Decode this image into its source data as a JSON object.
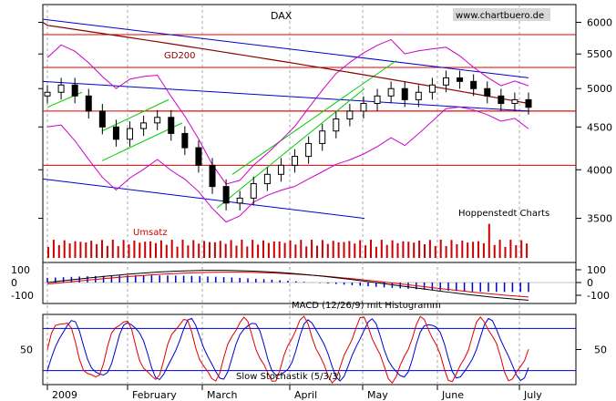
{
  "chart_data": {
    "type": "candlestick",
    "title": "DAX",
    "watermark": "www.chartbuero.de",
    "source_label": "Hoppenstedt Charts",
    "x_axis_labels": [
      "2009",
      "February",
      "March",
      "April",
      "May",
      "June",
      "July"
    ],
    "price_panel": {
      "y_ticks": [
        6000,
        5500,
        5000,
        4500,
        4000,
        3500
      ],
      "ylim": [
        3100,
        6300
      ],
      "scale": "log",
      "ma_label": "GD200",
      "volume_label": "Umsatz",
      "horizontal_levels": [
        5800,
        5300,
        4700,
        4050
      ],
      "close_by_week": [
        4950,
        5050,
        4900,
        4700,
        4500,
        4350,
        4480,
        4550,
        4620,
        4420,
        4250,
        4050,
        3820,
        3650,
        3700,
        3850,
        3950,
        4050,
        4150,
        4300,
        4450,
        4600,
        4700,
        4800,
        4900,
        5000,
        4850,
        4950,
        5050,
        5150,
        5100,
        5000,
        4900,
        4800,
        4850,
        4750
      ]
    },
    "macd_panel": {
      "label": "MACD (12/26/9) mit Histogramm",
      "y_ticks": [
        100,
        0,
        -100
      ]
    },
    "stochastic_panel": {
      "label": "Slow Stochastik (5/3/3)",
      "y_ticks": [
        50
      ],
      "levels": [
        80,
        20
      ]
    },
    "colors": {
      "price": "#000000",
      "resistance_lines": "#dd0000",
      "downtrend_channel": "#0000cc",
      "uptrend_channel": "#00cc00",
      "bollinger": "#cc00cc",
      "ma200": "#8b0000",
      "volume": "#cc0000",
      "macd_signal": "#dd0000",
      "macd_line": "#000000",
      "histogram": "#0000cc",
      "stoch_k": "#dd0000",
      "stoch_d": "#0000cc"
    }
  }
}
